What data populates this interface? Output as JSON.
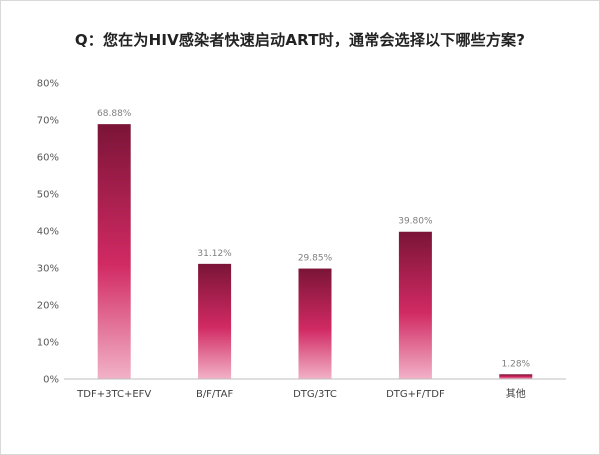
{
  "chart_data": {
    "type": "bar",
    "title": "Q：您在为HIV感染者快速启动ART时，通常会选择以下哪些方案?",
    "categories": [
      "TDF+3TC+EFV",
      "B/F/TAF",
      "DTG/3TC",
      "DTG+F/TDF",
      "其他"
    ],
    "values": [
      68.88,
      31.12,
      29.85,
      39.8,
      1.28
    ],
    "data_labels": [
      "68.88%",
      "31.12%",
      "29.85%",
      "39.80%",
      "1.28%"
    ],
    "ylim": [
      0,
      80
    ],
    "yticks": [
      0,
      10,
      20,
      30,
      40,
      50,
      60,
      70,
      80
    ],
    "ytick_labels": [
      "0%",
      "10%",
      "20%",
      "30%",
      "40%",
      "50%",
      "60%",
      "70%",
      "80%"
    ],
    "xlabel": "",
    "ylabel": "",
    "grid": false,
    "legend": "none",
    "colors": {
      "bar_top": "#7a1437",
      "bar_mid": "#d12a63",
      "bar_bottom": "#f2b2c8",
      "axis": "#bfbfbf"
    }
  }
}
